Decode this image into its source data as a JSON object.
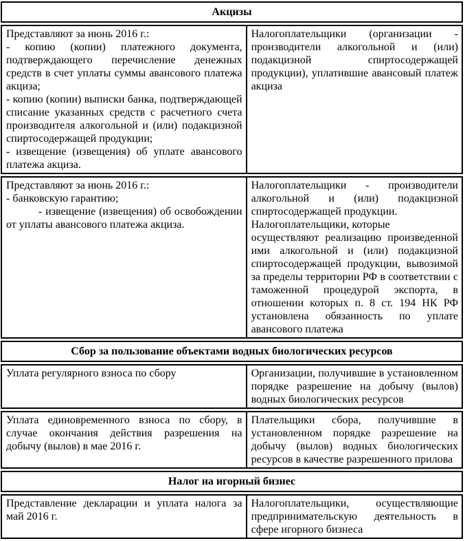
{
  "colors": {
    "border": "#000000",
    "background": "#ffffff",
    "text": "#000000"
  },
  "table": {
    "sections": [
      {
        "header": "Акцизы",
        "rows": [
          {
            "left": [
              "Представляют за июнь 2016 г.:",
              "- копию (копии) платежного документа, подтверждающего перечисление денежных средств в счет уплаты суммы авансового платежа акциза;",
              "- копию (копии) выписки банка, подтверждающей списание указанных средств с расчетного счета производителя алкогольной и (или) подакцизной спиртосодержащей продукции;",
              "- извещение (извещения) об уплате авансового платежа акциза."
            ],
            "right": [
              "Налогоплательщики (организации - производители алкогольной и (или) подакцизной спиртосодержащей продукции), уплатившие авансовый платеж акциза"
            ]
          },
          {
            "left": [
              "Представляют за июнь 2016 г.:",
              "- банковскую гарантию;",
              "- извещение (извещения) об освобождении от уплаты авансового платежа акциза."
            ],
            "right": [
              "Налогоплательщики - производители алкогольной и (или) подакцизной спиртосодержащей продукции.",
              "Налогоплательщики, которые",
              "осуществляют реализацию произведенной ими алкогольной и (или) подакцизной спиртосодержащей продукции, вывозимой за пределы территории РФ в соответствии с таможенной процедурой экспорта, в отношении которых п. 8 ст. 194 НК РФ установлена обязанность по уплате авансового платежа"
            ]
          }
        ]
      },
      {
        "header": "Сбор за пользование объектами водных биологических ресурсов",
        "rows": [
          {
            "left": [
              "Уплата регулярного взноса по сбору"
            ],
            "right": [
              "Организации, получившие в установленном порядке разрешение на добычу (вылов) водных биологических ресурсов"
            ]
          },
          {
            "left": [
              "Уплата единовременного взноса по сбору, в случае окончания действия разрешения на добычу (вылов) в мае 2016 г."
            ],
            "right": [
              "Плательщики сбора, получившие в установленном порядке разрешение на добычу (вылов) водных биологических ресурсов в качестве разрешенного прилова"
            ]
          }
        ]
      },
      {
        "header": "Налог на игорный бизнес",
        "rows": [
          {
            "left": [
              "Представление декларации и уплата налога за май 2016 г."
            ],
            "right": [
              "Налогоплательщики, осуществляющие предпринимательскую деятельность в сфере игорного бизнеса"
            ]
          }
        ]
      }
    ]
  }
}
